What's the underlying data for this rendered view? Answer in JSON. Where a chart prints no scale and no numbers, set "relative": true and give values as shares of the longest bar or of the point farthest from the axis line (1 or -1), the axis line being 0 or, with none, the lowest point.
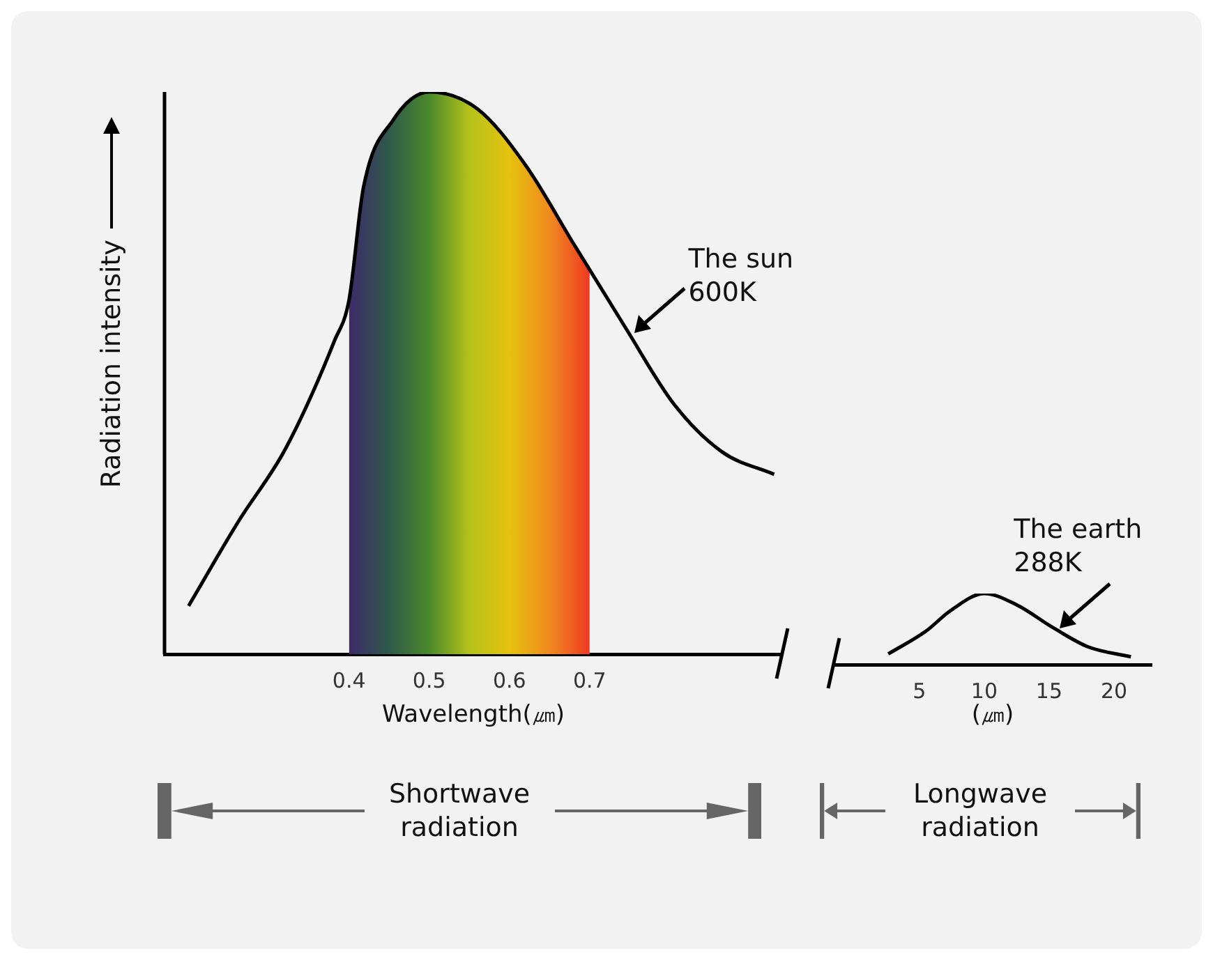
{
  "chart_data": [
    {
      "type": "line",
      "relative": true,
      "xlabel": "Wavelength(㎛)",
      "ylabel": "Radiation intensity",
      "tick_labels": "x",
      "grid": false,
      "xlim": [
        0.17,
        0.94
      ],
      "xticks": [
        0.4,
        0.5,
        0.6,
        0.7
      ],
      "x": [
        0.2,
        0.262,
        0.321,
        0.382,
        0.4,
        0.418,
        0.455,
        0.5,
        0.56,
        0.62,
        0.68,
        0.745,
        0.805,
        0.865,
        0.93
      ],
      "series": [
        {
          "color": "#000000",
          "values": [
            0.086,
            0.236,
            0.366,
            0.558,
            0.63,
            0.83,
            0.95,
            1,
            0.97,
            0.87,
            0.73,
            0.58,
            0.445,
            0.36,
            0.32
          ]
        },
        {
          "type": "area",
          "color": "#b5c21a",
          "x": [
            0.4,
            0.418,
            0.455,
            0.5,
            0.56,
            0.62,
            0.68,
            0.7
          ],
          "values": [
            0.63,
            0.83,
            0.95,
            1,
            0.97,
            0.87,
            0.73,
            0.69
          ]
        }
      ],
      "annotations": [
        {
          "text": "The sun 600K",
          "x": 0.75,
          "y": 0.57
        },
        "Shortwave radiation"
      ]
    },
    {
      "type": "line",
      "relative": true,
      "xlabel": "(㎛)",
      "tick_labels": "x",
      "grid": false,
      "xlim": [
        -1.6,
        22.9
      ],
      "xticks": [
        5,
        10,
        15,
        20
      ],
      "x": [
        2.6,
        5.5,
        7.4,
        10,
        12.5,
        15.3,
        18,
        21.3
      ],
      "series": [
        {
          "color": "#000000",
          "values": [
            0.15,
            0.47,
            0.76,
            1,
            0.84,
            0.52,
            0.25,
            0.11
          ]
        }
      ],
      "annotations": [
        {
          "text": "The earth 288K",
          "x": 15.5,
          "y": 0.5
        },
        "Longwave radiation"
      ]
    }
  ]
}
